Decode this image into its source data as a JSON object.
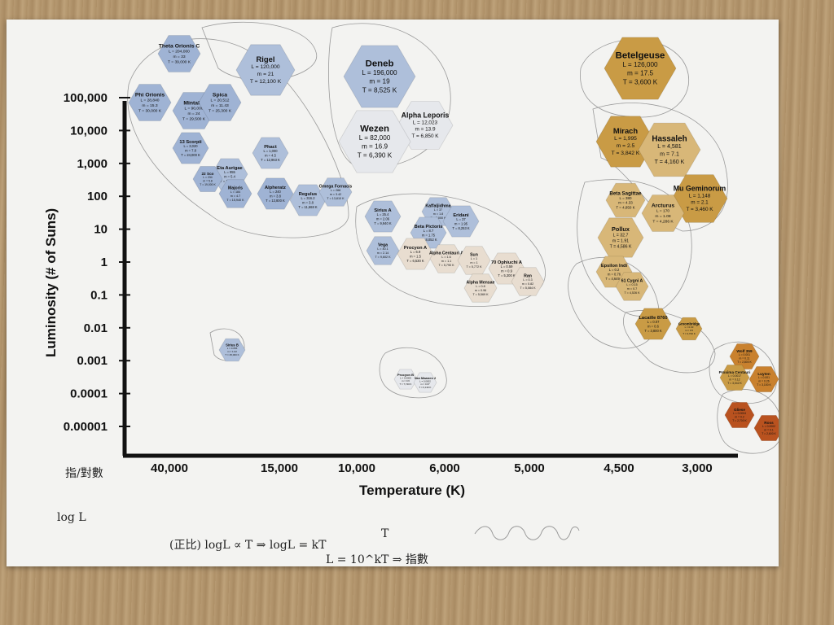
{
  "chart_data": {
    "type": "scatter",
    "title": "",
    "xlabel": "Temperature (K)",
    "ylabel": "Luminosity (# of Suns)",
    "x_ticks": [
      "40,000",
      "15,000",
      "10,000",
      "6,000",
      "5,000",
      "4,500",
      "3,000"
    ],
    "y_ticks": [
      "100,000",
      "10,000",
      "1,000",
      "100",
      "10",
      "1",
      "0.1",
      "0.01",
      "0.001",
      "0.0001",
      "0.00001"
    ],
    "y_scale": "log",
    "grid": false,
    "colors": {
      "blue": "#aebfda",
      "blue_dark": "#9fb3d4",
      "white": "#e6e8ec",
      "cream": "#e8ddd0",
      "yellow": "#d8b778",
      "gold": "#c99b45",
      "orange": "#c9812e",
      "red": "#b9521f"
    },
    "stars": [
      {
        "name": "Theta Orionis C",
        "info": [
          "L = 204,000",
          "m = 33",
          "T = 39,000 K"
        ],
        "color": "blue_dark",
        "logL": 6.3,
        "tx": 0.085
      },
      {
        "name": "Rigel",
        "info": [
          "L = 120,000",
          "m = 21",
          "T = 12,100 K"
        ],
        "color": "blue",
        "logL": 6.2,
        "tx": 0.29
      },
      {
        "name": "Deneb",
        "info": [
          "L = 196,000",
          "m = 19",
          "T = 8,525 K"
        ],
        "color": "blue",
        "logL": 5.8,
        "tx": 0.47
      },
      {
        "name": "Betelgeuse",
        "info": [
          "L = 126,000",
          "m = 17.5",
          "T = 3,600 K"
        ],
        "color": "gold",
        "logL": 6.0,
        "tx": 0.89
      },
      {
        "name": "Phi Orionis",
        "info": [
          "L = 28,840",
          "m = 15.3",
          "T = 30,000 K"
        ],
        "color": "blue_dark",
        "logL": 5.0,
        "tx": 0.03
      },
      {
        "name": "Mintaka",
        "info": [
          "L = 90,000",
          "m = 24",
          "T = 29,500 K"
        ],
        "color": "blue_dark",
        "logL": 4.7,
        "tx": 0.1
      },
      {
        "name": "Spica",
        "info": [
          "L = 20,512",
          "m = 11.43",
          "T = 25,300 K"
        ],
        "color": "blue_dark",
        "logL": 4.85,
        "tx": 0.17
      },
      {
        "name": "Alpha Leporis",
        "info": [
          "L = 12,023",
          "m = 13.9",
          "T = 6,850 K"
        ],
        "color": "white",
        "logL": 4.5,
        "tx": 0.52
      },
      {
        "name": "Wezen",
        "info": [
          "L = 82,000",
          "m = 16.9",
          "T = 6,390 K"
        ],
        "color": "white",
        "logL": 4.1,
        "tx": 0.45
      },
      {
        "name": "Mirach",
        "info": [
          "L = 1,995",
          "m = 2.5",
          "T = 3,842 K"
        ],
        "color": "gold",
        "logL": 4.1,
        "tx": 0.83
      },
      {
        "name": "Hassaleh",
        "info": [
          "L = 4,581",
          "m = 7.1",
          "T = 4,160 K"
        ],
        "color": "yellow",
        "logL": 3.8,
        "tx": 0.91
      },
      {
        "name": "13 Scorpii",
        "info": [
          "L = 3,020",
          "m = 7.8",
          "T = 24,000 K"
        ],
        "color": "blue_dark",
        "logL": 3.6,
        "tx": 0.11
      },
      {
        "name": "Phact",
        "info": [
          "L = 1,000",
          "m = 4.5",
          "T = 12,963 K"
        ],
        "color": "blue",
        "logL": 3.65,
        "tx": 0.25
      },
      {
        "name": "Eta Aurigae",
        "info": [
          "L = 955",
          "m = 5.4",
          "T = 17,201 K"
        ],
        "color": "blue",
        "logL": 3.05,
        "tx": 0.18
      },
      {
        "name": "22 Sco",
        "info": [
          "L = 234",
          "m = 5.8",
          "T = 19,000 K"
        ],
        "color": "blue_dark",
        "logL": 2.8,
        "tx": 0.14
      },
      {
        "name": "Majoris",
        "info": [
          "L = 184",
          "m = 4.7",
          "T = 15,940 K"
        ],
        "color": "blue_dark",
        "logL": 2.35,
        "tx": 0.19
      },
      {
        "name": "Alpheratz",
        "info": [
          "L = 240",
          "m = 3.8",
          "T = 13,800 K"
        ],
        "color": "blue_dark",
        "logL": 2.4,
        "tx": 0.26
      },
      {
        "name": "Regulus",
        "info": [
          "L = 316.2",
          "m = 3.8",
          "T = 11,668 K"
        ],
        "color": "blue",
        "logL": 1.95,
        "tx": 0.32
      },
      {
        "name": "Omega Fornacis",
        "info": [
          "L = 288",
          "m = 3.42",
          "T = 13,810 K"
        ],
        "color": "blue",
        "logL": 2.4,
        "tx": 0.36
      },
      {
        "name": "Mu Geminorum",
        "info": [
          "L = 1,148",
          "m = 2.1",
          "T = 3,460 K"
        ],
        "color": "gold",
        "logL": 2.55,
        "tx": 0.96
      },
      {
        "name": "Beta Sagittae",
        "info": [
          "L = 380",
          "m = 4.33",
          "T = 4,850 K"
        ],
        "color": "yellow",
        "logL": 2.1,
        "tx": 0.79
      },
      {
        "name": "Arcturus",
        "info": [
          "L = 170",
          "m = 1.08",
          "T = 4,286 K"
        ],
        "color": "yellow",
        "logL": 1.4,
        "tx": 0.87
      },
      {
        "name": "Pollux",
        "info": [
          "L = 32.7",
          "m = 1.91",
          "T = 4,586 K"
        ],
        "color": "yellow",
        "logL": 1.05,
        "tx": 0.8
      },
      {
        "name": "Kaffaljidhma",
        "info": [
          "L = 37",
          "m = 1.8",
          "T = 7,000 K"
        ],
        "color": "blue",
        "logL": 1.35,
        "tx": 0.5
      },
      {
        "name": "Sirius A",
        "info": [
          "L = 25.4",
          "m = 2.06",
          "T = 9,940 K"
        ],
        "color": "blue",
        "logL": 0.55,
        "tx": 0.44
      },
      {
        "name": "Beta Pictoris",
        "info": [
          "L = 8.7",
          "m = 1.75",
          "T = 8,052 K"
        ],
        "color": "blue",
        "logL": 0.8,
        "tx": 0.51
      },
      {
        "name": "Eridani",
        "info": [
          "L = 37",
          "m = 1.95",
          "T = 8,253 K"
        ],
        "color": "blue",
        "logL": 0.6,
        "tx": 0.57
      },
      {
        "name": "Vega",
        "info": [
          "L = 40.1",
          "m = 2.14",
          "T = 9,602 K"
        ],
        "color": "blue",
        "logL": -0.15,
        "tx": 0.44
      },
      {
        "name": "Procyon A",
        "info": [
          "L = 6.9",
          "m = 1.5",
          "T = 6,530 K"
        ],
        "color": "cream",
        "logL": -0.35,
        "tx": 0.49
      },
      {
        "name": "Alpha Centauri A",
        "info": [
          "L = 1.6",
          "m = 1.1",
          "T = 5,790 K"
        ],
        "color": "cream",
        "logL": -0.5,
        "tx": 0.55
      },
      {
        "name": "Sun",
        "info": [
          "L = 1",
          "m = 1",
          "T = 5,772 K"
        ],
        "color": "cream",
        "logL": -0.75,
        "tx": 0.58
      },
      {
        "name": "70 Ophiuchi A",
        "info": [
          "L = 0.59",
          "m = 0.9",
          "T = 5,300 K"
        ],
        "color": "cream",
        "logL": -1.0,
        "tx": 0.62
      },
      {
        "name": "Ran",
        "info": [
          "L = 0.3",
          "m = 0.82",
          "T = 5,084 K"
        ],
        "color": "cream",
        "logL": -1.65,
        "tx": 0.66
      },
      {
        "name": "Alpha Mensae",
        "info": [
          "L = 0.8",
          "m = 0.96",
          "T = 5,569 K"
        ],
        "color": "cream",
        "logL": -1.75,
        "tx": 0.58
      },
      {
        "name": "Epsilon Indi",
        "info": [
          "L = 0.2",
          "m = 0.76",
          "T = 4,649 K"
        ],
        "color": "yellow",
        "logL": -1.0,
        "tx": 0.77
      },
      {
        "name": "61 Cygni A",
        "info": [
          "L = 0.15",
          "m = 0.7",
          "T = 4,526 K"
        ],
        "color": "yellow",
        "logL": -1.85,
        "tx": 0.82
      },
      {
        "name": "Lacaille 8760",
        "info": [
          "L = 0.07",
          "m = 0.6",
          "T = 3,800 K"
        ],
        "color": "gold",
        "logL": -3.0,
        "tx": 0.83
      },
      {
        "name": "Groombridge",
        "info": [
          "L = 0.03",
          "m = 0.5",
          "T = 3,700 K"
        ],
        "color": "gold",
        "logL": -3.4,
        "tx": 0.87
      },
      {
        "name": "Sirius B",
        "info": [
          "L = 0.056",
          "m = 1.02",
          "T = 25,000 K"
        ],
        "color": "blue",
        "logL": -5.0,
        "tx": 0.17
      },
      {
        "name": "Procyon B",
        "info": [
          "L = 0.0005",
          "m = 0.6",
          "T = 7,740 K"
        ],
        "color": "white",
        "logL": -7.7,
        "tx": 0.46
      },
      {
        "name": "Van Maanen 2",
        "info": [
          "L = 0.0002",
          "m = 0.67",
          "T = 6,130 K"
        ],
        "color": "white",
        "logL": -8.25,
        "tx": 0.5
      },
      {
        "name": "Wolf 359",
        "info": [
          "L = 0.001",
          "m = 0.11",
          "T = 2,800 K"
        ],
        "color": "orange",
        "logL": -7.4,
        "tx": 1.02
      },
      {
        "name": "Proxima Centauri",
        "info": [
          "L = 0.0017",
          "m = 0.12",
          "T = 3,042 K"
        ],
        "color": "gold",
        "logL": -8.3,
        "tx": 0.98
      },
      {
        "name": "Luyten",
        "info": [
          "L = 0.001",
          "m = 0.26",
          "T = 3,150 K"
        ],
        "color": "orange",
        "logL": -8.25,
        "tx": 1.03
      },
      {
        "name": "Gliese",
        "info": [
          "L = 0.0004",
          "m = 0.2",
          "T = 2,700 K"
        ],
        "color": "red",
        "logL": -9.4,
        "tx": 1.0
      },
      {
        "name": "Ross",
        "info": [
          "L = 0.0002",
          "m = 0.1",
          "T = 2,600 K"
        ],
        "color": "red",
        "logL": -10.0,
        "tx": 1.04
      }
    ],
    "notes": [
      "指/對數",
      "log L",
      "(正比)  logL ∝ T ⇒ logL = kT",
      "T",
      "L = 10^kT ⇒ 指數"
    ]
  }
}
